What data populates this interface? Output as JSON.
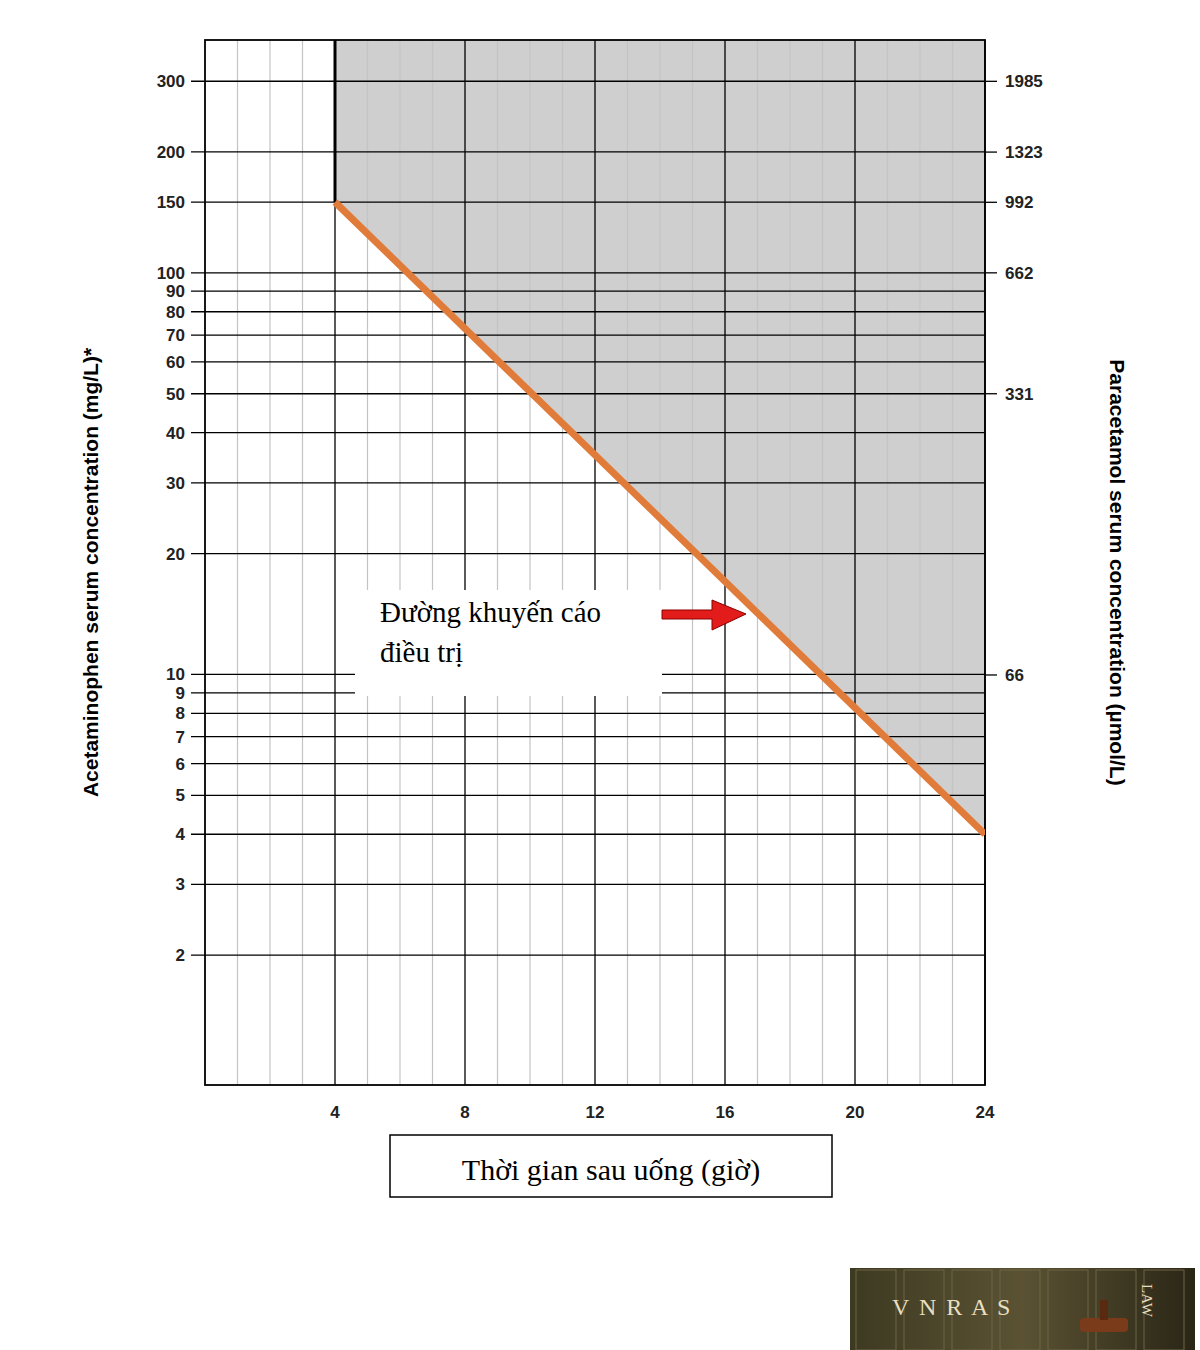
{
  "chart_data": {
    "type": "line",
    "x_label": "Thời gian sau uống (giờ)",
    "y_label": "Acetaminophen serum concentration (mg/L)*",
    "y2_label": "Paracetamol serum concentration (µmol/L)",
    "log": "y",
    "grid": true,
    "xlim": [
      0,
      24
    ],
    "xticks": [
      4,
      8,
      12,
      16,
      20,
      24
    ],
    "ylim": [
      0.95,
      380
    ],
    "yticks": [
      2,
      3,
      4,
      5,
      6,
      7,
      8,
      9,
      10,
      20,
      30,
      40,
      50,
      60,
      70,
      80,
      90,
      100,
      150,
      200,
      300
    ],
    "y2lim": [
      6.289,
      2515.6
    ],
    "y2ticks": [
      66,
      331,
      662,
      992,
      1323,
      1985
    ],
    "x": [
      4,
      24
    ],
    "series": [
      {
        "name": "Đường khuyến cáo điều trị",
        "color": "#e07b39",
        "values": [
          150,
          4
        ]
      }
    ],
    "logo": [
      "V N R A S",
      "LAW"
    ]
  }
}
